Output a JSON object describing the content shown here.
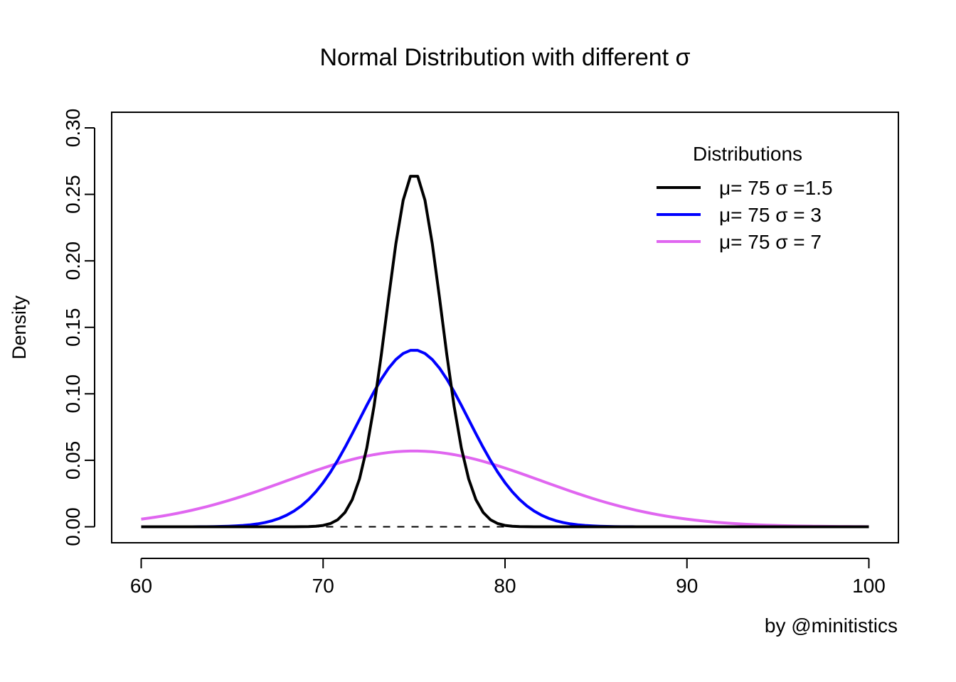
{
  "chart_data": {
    "type": "line",
    "title": "Normal Distribution with different σ",
    "xlabel": "",
    "ylabel": "Density",
    "credit": "by @minitistics",
    "xlim": [
      60,
      100
    ],
    "ylim": [
      0,
      0.3
    ],
    "xticks": [
      60,
      70,
      80,
      90,
      100
    ],
    "xtick_labels": [
      "60",
      "70",
      "80",
      "90",
      "100"
    ],
    "yticks": [
      0,
      0.05,
      0.1,
      0.15,
      0.2,
      0.25,
      0.3
    ],
    "ytick_labels": [
      "0.00",
      "0.05",
      "0.10",
      "0.15",
      "0.20",
      "0.25",
      "0.30"
    ],
    "legend_title": "Distributions",
    "legend_position": "top-right",
    "reference_line": {
      "y": 0,
      "style": "dashed",
      "color": "#000000"
    },
    "series": [
      {
        "name": "μ= 75 σ =1.5",
        "mu": 75,
        "sigma": 1.5,
        "color": "#000000",
        "x_start": 60,
        "x_end": 100,
        "step": 0.4
      },
      {
        "name": "μ= 75 σ = 3",
        "mu": 75,
        "sigma": 3,
        "color": "#0000ff",
        "x_start": 60,
        "x_end": 100,
        "step": 0.4
      },
      {
        "name": "μ= 75 σ = 7",
        "mu": 75,
        "sigma": 7,
        "color": "#e066f0",
        "x_start": 60,
        "x_end": 100,
        "step": 0.4
      }
    ]
  }
}
